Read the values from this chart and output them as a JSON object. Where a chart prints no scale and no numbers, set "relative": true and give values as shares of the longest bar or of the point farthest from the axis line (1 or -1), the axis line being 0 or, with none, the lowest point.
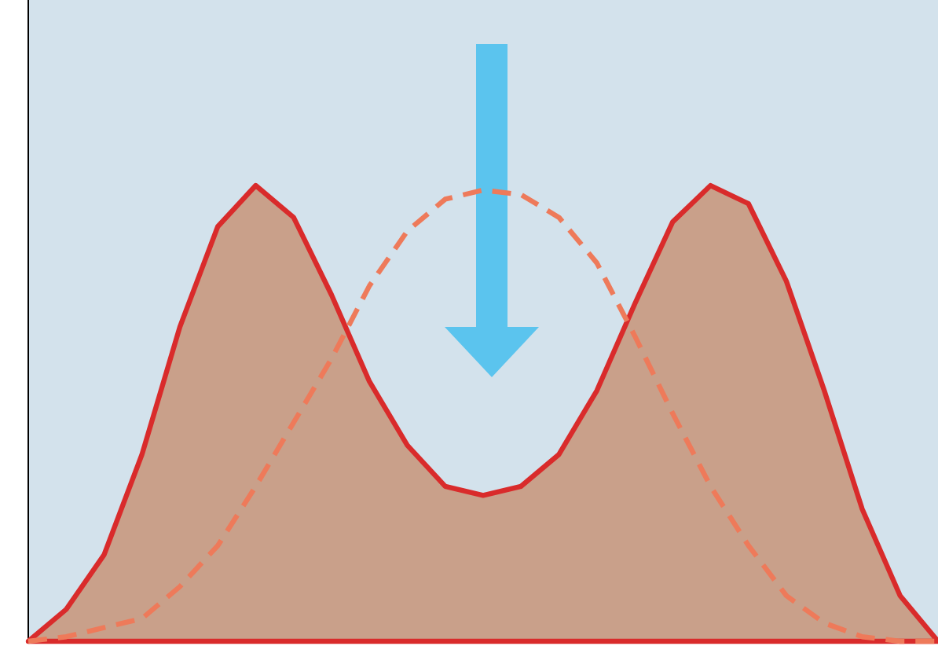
{
  "chart_data": {
    "type": "area",
    "relative": true,
    "categories": [
      null,
      null,
      null,
      null,
      null,
      null,
      null,
      null,
      null,
      null,
      null,
      null,
      null,
      null,
      null,
      null,
      null,
      null,
      null,
      null,
      null,
      null,
      null,
      null,
      null
    ],
    "series": [
      {
        "color": "#d92b2b",
        "values": [
          0,
          0.07,
          0.19,
          0.41,
          0.69,
          0.91,
          1,
          0.93,
          0.76,
          0.57,
          0.43,
          0.34,
          0.32,
          0.34,
          0.41,
          0.55,
          0.74,
          0.92,
          1,
          0.96,
          0.79,
          0.55,
          0.29,
          0.1,
          0
        ]
      },
      {
        "type": "line",
        "color": "#ee7a5a",
        "line_style": "dashed",
        "values": [
          0,
          0.01,
          0.03,
          0.05,
          0.12,
          0.21,
          0.34,
          0.48,
          0.62,
          0.78,
          0.9,
          0.97,
          0.99,
          0.98,
          0.93,
          0.83,
          0.67,
          0.5,
          0.34,
          0.21,
          0.1,
          0.04,
          0.01,
          0,
          0
        ]
      }
    ]
  }
}
